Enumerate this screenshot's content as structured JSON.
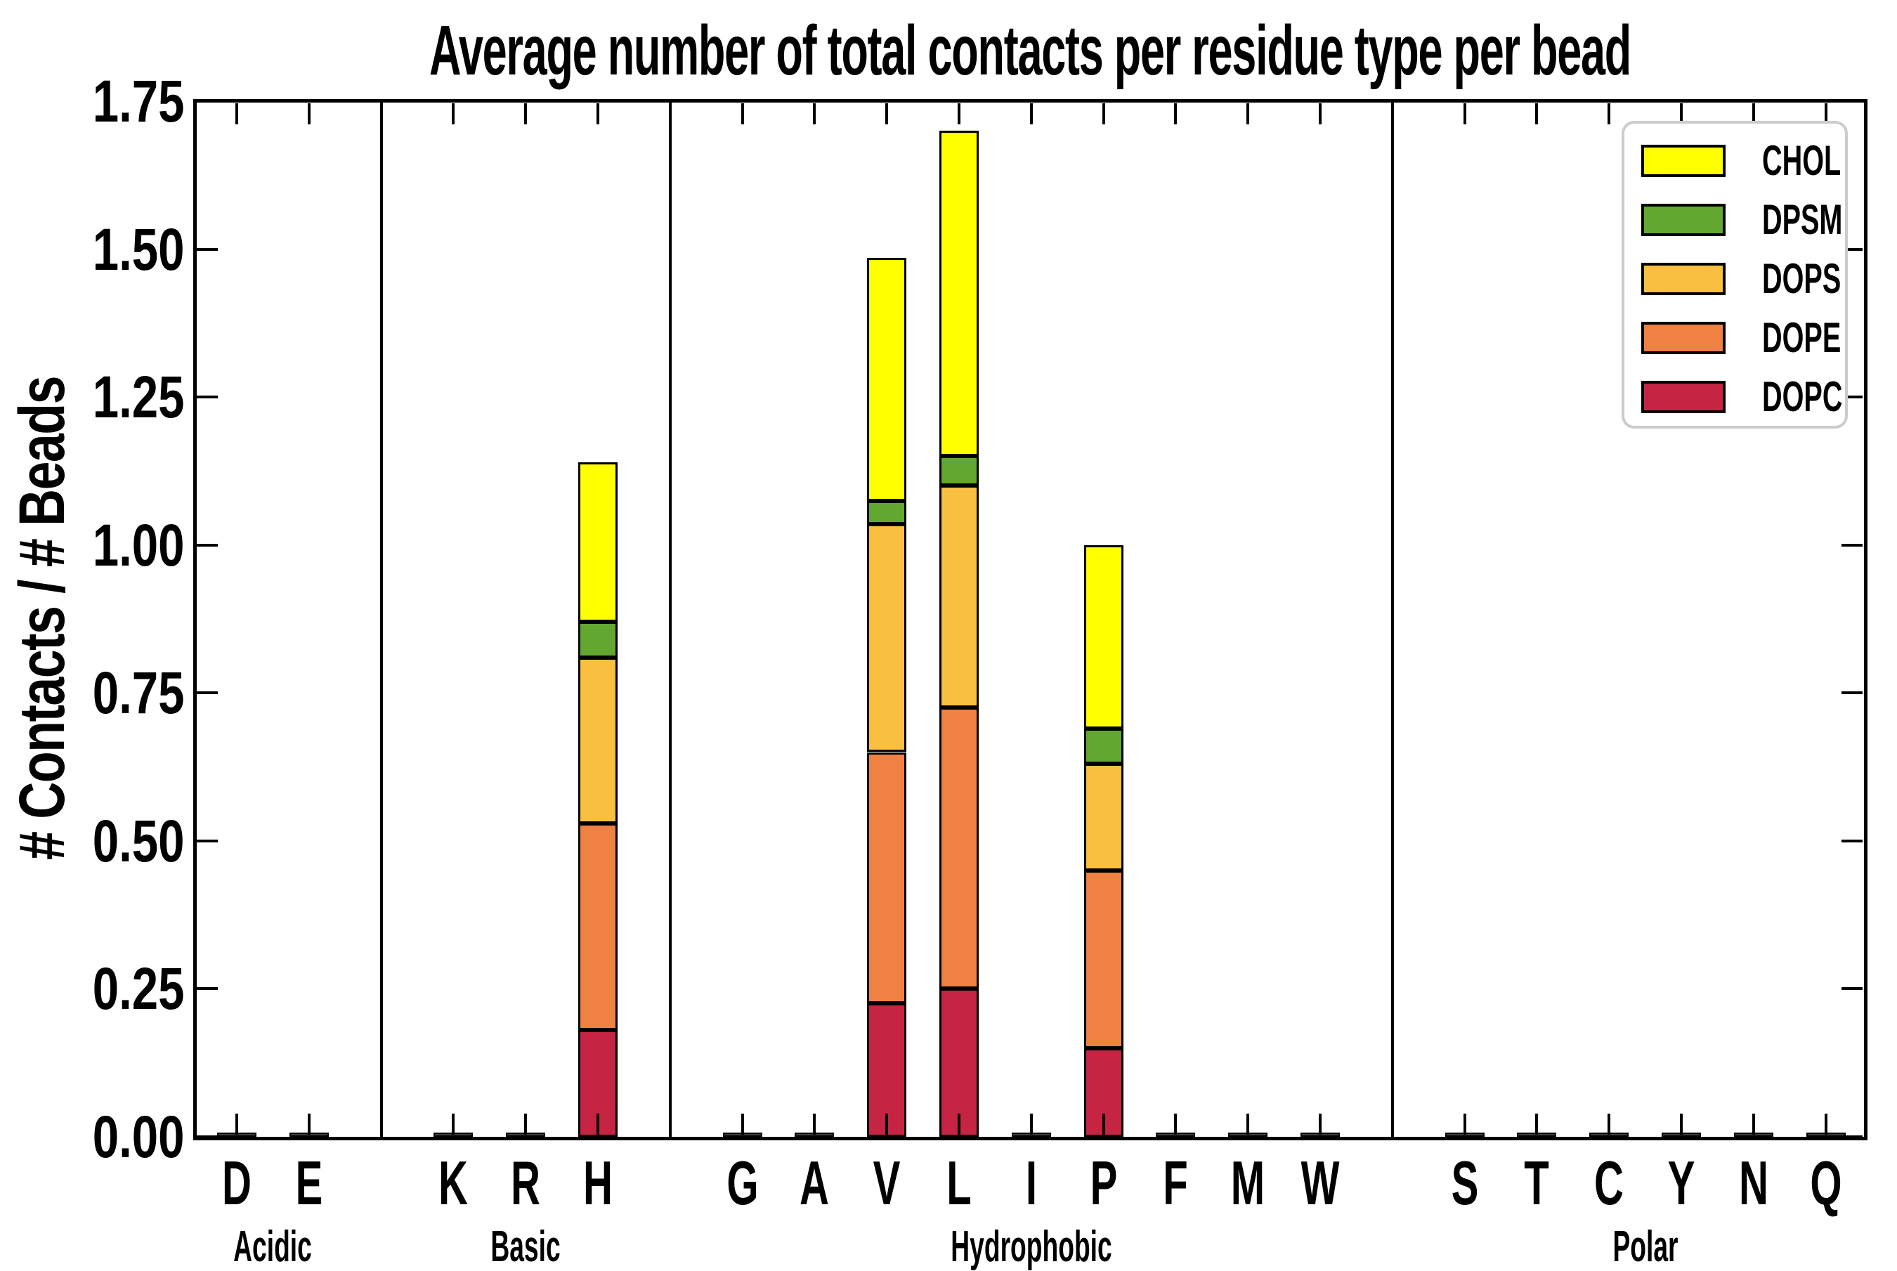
{
  "chart_data": {
    "type": "bar",
    "stacked": true,
    "title": "Average number of total contacts per residue type per bead",
    "ylabel": "# Contacts / # Beads",
    "xlabel": "",
    "ylim": [
      0,
      1.75
    ],
    "ytick_labels": [
      "0.00",
      "0.25",
      "0.50",
      "0.75",
      "1.00",
      "1.25",
      "1.50",
      "1.75"
    ],
    "grid": false,
    "legend": {
      "position": "upper right",
      "entries": [
        {
          "name": "CHOL",
          "color": "#ffff00"
        },
        {
          "name": "DPSM",
          "color": "#62a72f"
        },
        {
          "name": "DOPS",
          "color": "#f9bf41"
        },
        {
          "name": "DOPE",
          "color": "#ef8142"
        },
        {
          "name": "DOPC",
          "color": "#c52443"
        }
      ]
    },
    "stack_order_bottom_to_top": [
      "DOPC",
      "DOPE",
      "DOPS",
      "DPSM",
      "CHOL"
    ],
    "series_colors": {
      "DOPC": "#c52443",
      "DOPE": "#ef8142",
      "DOPS": "#f9bf41",
      "DPSM": "#62a72f",
      "CHOL": "#ffff00"
    },
    "groups": [
      {
        "label": "Acidic",
        "residues": [
          "D",
          "E"
        ]
      },
      {
        "label": "Basic",
        "residues": [
          "K",
          "R",
          "H"
        ]
      },
      {
        "label": "Hydrophobic",
        "residues": [
          "G",
          "A",
          "V",
          "L",
          "I",
          "P",
          "F",
          "M",
          "W"
        ]
      },
      {
        "label": "Polar",
        "residues": [
          "S",
          "T",
          "C",
          "Y",
          "N",
          "Q"
        ]
      }
    ],
    "values": {
      "D": {
        "DOPC": 0.002,
        "DOPE": 0.002,
        "DOPS": 0.001,
        "DPSM": 0,
        "CHOL": 0
      },
      "E": {
        "DOPC": 0.002,
        "DOPE": 0.002,
        "DOPS": 0.001,
        "DPSM": 0,
        "CHOL": 0
      },
      "K": {
        "DOPC": 0.002,
        "DOPE": 0.002,
        "DOPS": 0.001,
        "DPSM": 0,
        "CHOL": 0
      },
      "R": {
        "DOPC": 0.002,
        "DOPE": 0.002,
        "DOPS": 0.001,
        "DPSM": 0,
        "CHOL": 0
      },
      "H": {
        "DOPC": 0.18,
        "DOPE": 0.35,
        "DOPS": 0.28,
        "DPSM": 0.06,
        "CHOL": 0.27
      },
      "G": {
        "DOPC": 0.002,
        "DOPE": 0.002,
        "DOPS": 0.001,
        "DPSM": 0,
        "CHOL": 0
      },
      "A": {
        "DOPC": 0.002,
        "DOPE": 0.002,
        "DOPS": 0.001,
        "DPSM": 0,
        "CHOL": 0
      },
      "V": {
        "DOPC": 0.225,
        "DOPE": 0.425,
        "DOPS": 0.385,
        "DPSM": 0.04,
        "CHOL": 0.41
      },
      "L": {
        "DOPC": 0.25,
        "DOPE": 0.475,
        "DOPS": 0.375,
        "DPSM": 0.05,
        "CHOL": 0.55
      },
      "I": {
        "DOPC": 0.002,
        "DOPE": 0.002,
        "DOPS": 0.001,
        "DPSM": 0,
        "CHOL": 0
      },
      "P": {
        "DOPC": 0.15,
        "DOPE": 0.3,
        "DOPS": 0.18,
        "DPSM": 0.06,
        "CHOL": 0.31
      },
      "F": {
        "DOPC": 0.002,
        "DOPE": 0.002,
        "DOPS": 0.001,
        "DPSM": 0,
        "CHOL": 0
      },
      "M": {
        "DOPC": 0.002,
        "DOPE": 0.002,
        "DOPS": 0.001,
        "DPSM": 0,
        "CHOL": 0
      },
      "W": {
        "DOPC": 0.002,
        "DOPE": 0.002,
        "DOPS": 0.001,
        "DPSM": 0,
        "CHOL": 0
      },
      "S": {
        "DOPC": 0.002,
        "DOPE": 0.002,
        "DOPS": 0.001,
        "DPSM": 0,
        "CHOL": 0
      },
      "T": {
        "DOPC": 0.002,
        "DOPE": 0.002,
        "DOPS": 0.001,
        "DPSM": 0,
        "CHOL": 0
      },
      "C": {
        "DOPC": 0.002,
        "DOPE": 0.002,
        "DOPS": 0.001,
        "DPSM": 0,
        "CHOL": 0
      },
      "Y": {
        "DOPC": 0.002,
        "DOPE": 0.002,
        "DOPS": 0.001,
        "DPSM": 0,
        "CHOL": 0
      },
      "N": {
        "DOPC": 0.002,
        "DOPE": 0.002,
        "DOPS": 0.001,
        "DPSM": 0,
        "CHOL": 0
      },
      "Q": {
        "DOPC": 0.002,
        "DOPE": 0.002,
        "DOPS": 0.001,
        "DPSM": 0,
        "CHOL": 0
      }
    }
  }
}
